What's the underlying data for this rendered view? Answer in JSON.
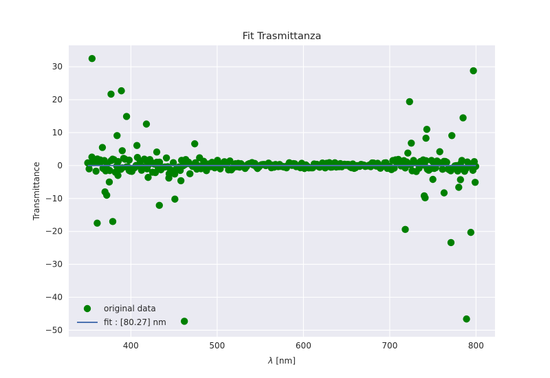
{
  "chart_data": {
    "type": "scatter",
    "title": "Fit Trasmittanza",
    "xlabel_symbol": "λ",
    "xlabel_unit": "[nm]",
    "ylabel": "Transmittance",
    "xlim": [
      328,
      822
    ],
    "ylim": [
      -52,
      36.5
    ],
    "xticks": [
      400,
      500,
      600,
      700,
      800
    ],
    "yticks": [
      -50,
      -40,
      -30,
      -20,
      -10,
      0,
      10,
      20,
      30
    ],
    "xtick_labels": [
      "400",
      "500",
      "600",
      "700",
      "800"
    ],
    "ytick_labels": [
      "−50",
      "−40",
      "−30",
      "−20",
      "−10",
      "0",
      "10",
      "20",
      "30"
    ],
    "grid": true,
    "legend_position": "lower-left",
    "colors": {
      "background": "#EAEAF2",
      "grid": "#FFFFFF",
      "data": "#008000",
      "fit": "#4C72B0"
    },
    "series": [
      {
        "name": "original data",
        "kind": "scatter",
        "x": [
          355,
          361,
          367,
          370,
          372,
          375,
          377,
          379,
          384,
          385,
          389,
          390,
          395,
          398,
          407,
          418,
          420,
          430,
          433,
          444,
          451,
          458,
          462,
          474,
          718,
          721,
          723,
          725,
          740,
          741,
          742,
          743,
          750,
          758,
          763,
          771,
          772,
          780,
          782,
          785,
          789,
          794,
          797,
          799
        ],
        "y": [
          32.5,
          -17.5,
          5.5,
          -8,
          -9,
          -5,
          21.7,
          -17,
          9.1,
          -3,
          22.7,
          4.5,
          14.9,
          -1.5,
          6.1,
          12.6,
          -3.6,
          4.1,
          -12.1,
          -3.8,
          -10.2,
          -4.6,
          -47.3,
          6.6,
          -19.4,
          3.8,
          19.4,
          6.8,
          -9.2,
          -9.8,
          8.3,
          11,
          -4.2,
          4.2,
          -8.3,
          -23.4,
          9.1,
          -6.6,
          -4.3,
          14.5,
          -46.6,
          -20.3,
          28.8,
          -5.1
        ]
      },
      {
        "name": "fit : [80.27] nm",
        "kind": "line",
        "x": [
          350,
          800
        ],
        "y": [
          0,
          0
        ]
      }
    ]
  }
}
